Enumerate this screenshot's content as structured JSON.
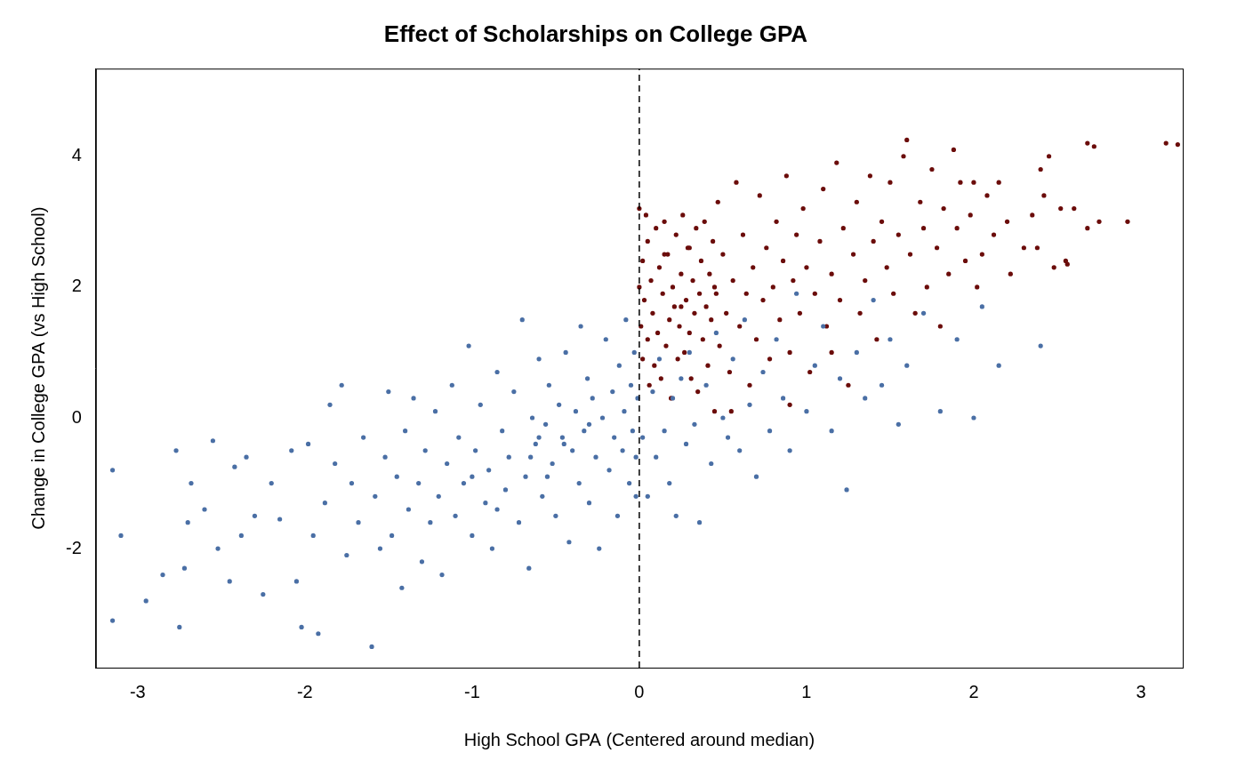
{
  "chart_data": {
    "type": "scatter",
    "title": "Effect of Scholarships on College GPA",
    "x_label": "High School GPA (Centered around median)",
    "y_label": "Change in College GPA (vs High School)",
    "xlim": [
      -3.25,
      3.25
    ],
    "xticks": [
      -3,
      -2,
      -1,
      0,
      1,
      2,
      3
    ],
    "ylim": [
      -3.82,
      5.34
    ],
    "yticks": [
      -2,
      0,
      2,
      4
    ],
    "grid": false,
    "series": [
      {
        "color": "#4a6fa5",
        "marker": "circle",
        "x": [
          -3.15,
          -3.15,
          -3.1,
          -2.95,
          -2.85,
          -2.77,
          -2.75,
          -2.72,
          -2.7,
          -2.68,
          -2.6,
          -2.55,
          -2.52,
          -2.45,
          -2.42,
          -2.38,
          -2.35,
          -2.3,
          -2.25,
          -2.2,
          -2.15,
          -2.08,
          -2.05,
          -2.02,
          -1.98,
          -1.95,
          -1.92,
          -1.88,
          -1.85,
          -1.82,
          -1.78,
          -1.75,
          -1.72,
          -1.68,
          -1.65,
          -1.6,
          -1.58,
          -1.55,
          -1.52,
          -1.5,
          -1.48,
          -1.45,
          -1.42,
          -1.4,
          -1.38,
          -1.35,
          -1.32,
          -1.3,
          -1.28,
          -1.25,
          -1.22,
          -1.2,
          -1.18,
          -1.15,
          -1.12,
          -1.1,
          -1.08,
          -1.05,
          -1.02,
          -1.0,
          -0.98,
          -0.95,
          -0.92,
          -0.9,
          -0.88,
          -0.85,
          -0.82,
          -0.8,
          -0.78,
          -0.75,
          -0.72,
          -0.7,
          -0.68,
          -0.66,
          -0.64,
          -0.62,
          -0.6,
          -0.58,
          -0.56,
          -0.54,
          -0.52,
          -0.5,
          -0.48,
          -0.46,
          -0.44,
          -0.42,
          -0.4,
          -0.38,
          -0.36,
          -0.35,
          -0.33,
          -0.31,
          -0.3,
          -0.28,
          -0.26,
          -0.24,
          -0.22,
          -0.2,
          -0.18,
          -0.16,
          -0.15,
          -0.13,
          -0.12,
          -0.1,
          -0.09,
          -0.08,
          -0.06,
          -0.05,
          -0.04,
          -0.03,
          -0.02,
          -0.01,
          -0.02,
          -0.55,
          -0.45,
          -0.65,
          -0.85,
          -1.0,
          -0.3,
          -0.6,
          0.02,
          0.05,
          0.08,
          0.1,
          0.12,
          0.15,
          0.18,
          0.2,
          0.22,
          0.25,
          0.28,
          0.3,
          0.33,
          0.36,
          0.4,
          0.43,
          0.46,
          0.5,
          0.53,
          0.56,
          0.6,
          0.63,
          0.66,
          0.7,
          0.74,
          0.78,
          0.82,
          0.86,
          0.9,
          0.94,
          1.0,
          1.05,
          1.1,
          1.15,
          1.2,
          1.24,
          1.3,
          1.35,
          1.4,
          1.45,
          1.5,
          1.55,
          1.6,
          1.7,
          1.8,
          1.9,
          2.0,
          2.05,
          2.15,
          2.4
        ],
        "values": [
          -0.8,
          -3.1,
          -1.8,
          -2.8,
          -2.4,
          -0.5,
          -3.2,
          -2.3,
          -1.6,
          -1.0,
          -1.4,
          -0.35,
          -2.0,
          -2.5,
          -0.75,
          -1.8,
          -0.6,
          -1.5,
          -2.7,
          -1.0,
          -1.55,
          -0.5,
          -2.5,
          -3.2,
          -0.4,
          -1.8,
          -3.3,
          -1.3,
          0.2,
          -0.7,
          0.5,
          -2.1,
          -1.0,
          -1.6,
          -0.3,
          -3.5,
          -1.2,
          -2.0,
          -0.6,
          0.4,
          -1.8,
          -0.9,
          -2.6,
          -0.2,
          -1.4,
          0.3,
          -1.0,
          -2.2,
          -0.5,
          -1.6,
          0.1,
          -1.2,
          -2.4,
          -0.7,
          0.5,
          -1.5,
          -0.3,
          -1.0,
          1.1,
          -1.8,
          -0.5,
          0.2,
          -1.3,
          -0.8,
          -2.0,
          0.7,
          -0.2,
          -1.1,
          -0.6,
          0.4,
          -1.6,
          1.5,
          -0.9,
          -2.3,
          0.0,
          -0.4,
          0.9,
          -1.2,
          -0.1,
          0.5,
          -0.7,
          -1.5,
          0.2,
          -0.3,
          1.0,
          -1.9,
          -0.5,
          0.1,
          -1.0,
          1.4,
          -0.2,
          0.6,
          -1.3,
          0.3,
          -0.6,
          -2.0,
          0.0,
          1.2,
          -0.8,
          0.4,
          -0.3,
          -1.5,
          0.8,
          -0.5,
          0.1,
          1.5,
          -1.0,
          0.5,
          -0.2,
          1.0,
          -0.6,
          0.3,
          -1.2,
          -0.9,
          -0.4,
          -0.6,
          -1.4,
          -0.9,
          -0.1,
          -0.3,
          -0.3,
          -1.2,
          0.4,
          -0.6,
          0.9,
          -0.2,
          -1.0,
          0.3,
          -1.5,
          0.6,
          -0.4,
          1.0,
          -0.1,
          -1.6,
          0.5,
          -0.7,
          1.3,
          0.0,
          -0.3,
          0.9,
          -0.5,
          1.5,
          0.2,
          -0.9,
          0.7,
          -0.2,
          1.2,
          0.3,
          -0.5,
          1.9,
          0.1,
          0.8,
          1.4,
          -0.2,
          0.6,
          -1.1,
          1.0,
          0.3,
          1.8,
          0.5,
          1.2,
          -0.1,
          0.8,
          1.6,
          0.1,
          1.2,
          0.0,
          1.7,
          0.8,
          1.1
        ]
      },
      {
        "color": "#6b0c0a",
        "marker": "circle",
        "x": [
          0.0,
          0.0,
          0.01,
          0.02,
          0.02,
          0.03,
          0.04,
          0.05,
          0.05,
          0.06,
          0.07,
          0.08,
          0.09,
          0.1,
          0.11,
          0.12,
          0.13,
          0.14,
          0.15,
          0.16,
          0.17,
          0.18,
          0.19,
          0.2,
          0.21,
          0.22,
          0.23,
          0.24,
          0.25,
          0.26,
          0.27,
          0.28,
          0.29,
          0.3,
          0.31,
          0.32,
          0.33,
          0.34,
          0.35,
          0.36,
          0.37,
          0.38,
          0.39,
          0.4,
          0.41,
          0.42,
          0.43,
          0.44,
          0.45,
          0.46,
          0.47,
          0.48,
          0.5,
          0.52,
          0.54,
          0.56,
          0.58,
          0.6,
          0.62,
          0.64,
          0.66,
          0.68,
          0.7,
          0.72,
          0.74,
          0.76,
          0.78,
          0.8,
          0.82,
          0.84,
          0.86,
          0.88,
          0.9,
          0.92,
          0.94,
          0.96,
          0.98,
          1.0,
          1.02,
          1.05,
          1.08,
          1.1,
          1.12,
          1.15,
          1.18,
          1.2,
          1.22,
          1.25,
          1.28,
          1.3,
          1.32,
          1.35,
          1.38,
          1.4,
          1.42,
          1.45,
          1.48,
          1.5,
          1.52,
          1.55,
          1.58,
          1.6,
          1.62,
          1.65,
          1.68,
          1.7,
          1.72,
          1.75,
          1.78,
          1.8,
          1.82,
          1.85,
          1.88,
          1.9,
          1.92,
          1.95,
          1.98,
          2.0,
          2.02,
          2.05,
          2.08,
          2.12,
          2.15,
          2.2,
          2.22,
          2.3,
          2.35,
          2.38,
          2.4,
          2.42,
          2.45,
          2.48,
          2.52,
          2.56,
          2.6,
          2.68,
          2.68,
          2.72,
          2.92,
          3.15,
          3.22,
          2.75,
          2.55,
          1.15,
          0.9,
          0.55,
          0.3,
          0.15,
          0.25,
          0.45
        ],
        "values": [
          2.0,
          3.2,
          1.4,
          2.4,
          0.9,
          1.8,
          3.1,
          1.2,
          2.7,
          0.5,
          2.1,
          1.6,
          0.8,
          2.9,
          1.3,
          2.3,
          0.6,
          1.9,
          3.0,
          1.1,
          2.5,
          1.5,
          0.3,
          2.0,
          1.7,
          2.8,
          0.9,
          1.4,
          2.2,
          3.1,
          1.0,
          1.8,
          2.6,
          1.3,
          0.6,
          2.1,
          1.6,
          2.9,
          0.4,
          1.9,
          2.4,
          1.2,
          3.0,
          1.7,
          0.8,
          2.2,
          1.5,
          2.7,
          0.1,
          1.9,
          3.3,
          1.1,
          2.5,
          1.6,
          0.7,
          2.1,
          3.6,
          1.4,
          2.8,
          1.9,
          0.5,
          2.3,
          1.2,
          3.4,
          1.8,
          2.6,
          0.9,
          2.0,
          3.0,
          1.5,
          2.4,
          3.7,
          1.0,
          2.1,
          2.8,
          1.6,
          3.2,
          2.3,
          0.7,
          1.9,
          2.7,
          3.5,
          1.4,
          2.2,
          3.9,
          1.8,
          2.9,
          0.5,
          2.5,
          3.3,
          1.6,
          2.1,
          3.7,
          2.7,
          1.2,
          3.0,
          2.3,
          3.6,
          1.9,
          2.8,
          4.0,
          4.25,
          2.5,
          1.6,
          3.3,
          2.9,
          2.0,
          3.8,
          2.6,
          1.4,
          3.2,
          2.2,
          4.1,
          2.9,
          3.6,
          2.4,
          3.1,
          3.6,
          2.0,
          2.5,
          3.4,
          2.8,
          3.6,
          3.0,
          2.2,
          2.6,
          3.1,
          2.6,
          3.8,
          3.4,
          4.0,
          2.3,
          3.2,
          2.35,
          3.2,
          2.9,
          4.2,
          4.15,
          3.0,
          4.2,
          4.18,
          3.0,
          2.4,
          1.0,
          0.2,
          0.1,
          2.6,
          2.5,
          1.7,
          2.0
        ]
      },
      {
        "type": "line",
        "line_style": "dashed",
        "color": "#000000",
        "x": [
          0,
          0
        ],
        "values": [
          -3.82,
          5.34
        ]
      }
    ]
  }
}
